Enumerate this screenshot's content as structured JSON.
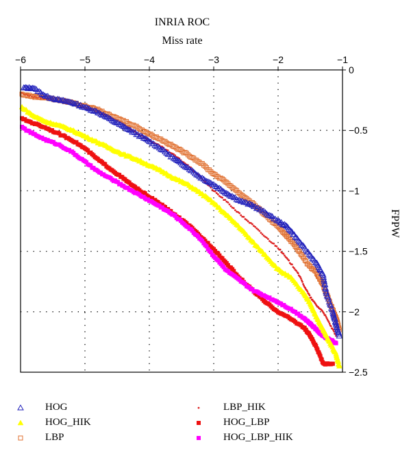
{
  "chart_data": {
    "type": "scatter",
    "title": "INRIA ROC",
    "xlabel": "Miss rate",
    "ylabel": "FPPW",
    "xlim": [
      -6,
      -1
    ],
    "ylim": [
      -2.5,
      0
    ],
    "xticks": [
      -6,
      -5,
      -4,
      -3,
      -2,
      -1
    ],
    "yticks": [
      0,
      -0.5,
      -1,
      -1.5,
      -2,
      -2.5
    ],
    "xtick_labels": [
      "−6",
      "−5",
      "−4",
      "−3",
      "−2",
      "−1"
    ],
    "ytick_labels": [
      "0",
      "−0.5",
      "−1",
      "−1.5",
      "−2",
      "−2.5"
    ],
    "grid": true,
    "legend_position": "below",
    "series": [
      {
        "name": "HOG",
        "color": "#2222bb",
        "marker": "triangle-open",
        "points": [
          [
            -5.95,
            -0.15
          ],
          [
            -5.8,
            -0.15
          ],
          [
            -5.6,
            -0.22
          ],
          [
            -5.4,
            -0.25
          ],
          [
            -5.2,
            -0.27
          ],
          [
            -5.0,
            -0.31
          ],
          [
            -4.8,
            -0.35
          ],
          [
            -4.6,
            -0.41
          ],
          [
            -4.4,
            -0.47
          ],
          [
            -4.2,
            -0.53
          ],
          [
            -4.0,
            -0.59
          ],
          [
            -3.8,
            -0.66
          ],
          [
            -3.6,
            -0.74
          ],
          [
            -3.4,
            -0.81
          ],
          [
            -3.2,
            -0.89
          ],
          [
            -3.0,
            -0.95
          ],
          [
            -2.8,
            -1.02
          ],
          [
            -2.6,
            -1.08
          ],
          [
            -2.4,
            -1.12
          ],
          [
            -2.2,
            -1.18
          ],
          [
            -2.0,
            -1.25
          ],
          [
            -1.85,
            -1.3
          ],
          [
            -1.7,
            -1.4
          ],
          [
            -1.55,
            -1.5
          ],
          [
            -1.4,
            -1.6
          ],
          [
            -1.3,
            -1.7
          ],
          [
            -1.25,
            -1.85
          ],
          [
            -1.15,
            -2.0
          ],
          [
            -1.1,
            -2.1
          ],
          [
            -1.05,
            -2.2
          ]
        ]
      },
      {
        "name": "HOG_HIK",
        "color": "#ffff00",
        "marker": "triangle-filled",
        "points": [
          [
            -6.0,
            -0.3
          ],
          [
            -5.8,
            -0.38
          ],
          [
            -5.6,
            -0.43
          ],
          [
            -5.4,
            -0.46
          ],
          [
            -5.2,
            -0.5
          ],
          [
            -5.0,
            -0.55
          ],
          [
            -4.8,
            -0.6
          ],
          [
            -4.6,
            -0.65
          ],
          [
            -4.4,
            -0.7
          ],
          [
            -4.2,
            -0.74
          ],
          [
            -4.0,
            -0.79
          ],
          [
            -3.8,
            -0.84
          ],
          [
            -3.6,
            -0.9
          ],
          [
            -3.4,
            -0.95
          ],
          [
            -3.2,
            -1.02
          ],
          [
            -3.0,
            -1.1
          ],
          [
            -2.8,
            -1.2
          ],
          [
            -2.6,
            -1.3
          ],
          [
            -2.4,
            -1.42
          ],
          [
            -2.2,
            -1.53
          ],
          [
            -2.0,
            -1.65
          ],
          [
            -1.8,
            -1.72
          ],
          [
            -1.6,
            -1.85
          ],
          [
            -1.5,
            -1.93
          ],
          [
            -1.4,
            -2.05
          ],
          [
            -1.3,
            -2.15
          ],
          [
            -1.2,
            -2.25
          ],
          [
            -1.1,
            -2.35
          ],
          [
            -1.05,
            -2.45
          ]
        ]
      },
      {
        "name": "LBP",
        "color": "#e07030",
        "marker": "square-open",
        "points": [
          [
            -6.0,
            -0.2
          ],
          [
            -5.8,
            -0.22
          ],
          [
            -5.6,
            -0.23
          ],
          [
            -5.4,
            -0.25
          ],
          [
            -5.2,
            -0.27
          ],
          [
            -5.0,
            -0.3
          ],
          [
            -4.8,
            -0.33
          ],
          [
            -4.6,
            -0.38
          ],
          [
            -4.4,
            -0.42
          ],
          [
            -4.2,
            -0.47
          ],
          [
            -4.0,
            -0.53
          ],
          [
            -3.8,
            -0.58
          ],
          [
            -3.6,
            -0.64
          ],
          [
            -3.4,
            -0.7
          ],
          [
            -3.2,
            -0.77
          ],
          [
            -3.0,
            -0.86
          ],
          [
            -2.8,
            -0.93
          ],
          [
            -2.6,
            -1.02
          ],
          [
            -2.4,
            -1.1
          ],
          [
            -2.2,
            -1.2
          ],
          [
            -2.0,
            -1.3
          ],
          [
            -1.85,
            -1.38
          ],
          [
            -1.7,
            -1.48
          ],
          [
            -1.55,
            -1.6
          ],
          [
            -1.4,
            -1.68
          ],
          [
            -1.3,
            -1.78
          ],
          [
            -1.2,
            -1.92
          ],
          [
            -1.1,
            -2.05
          ],
          [
            -1.05,
            -2.15
          ]
        ]
      },
      {
        "name": "LBP_HIK",
        "color": "#dd2222",
        "marker": "dot",
        "points": [
          [
            -6.0,
            -0.19
          ],
          [
            -5.8,
            -0.22
          ],
          [
            -5.6,
            -0.24
          ],
          [
            -5.4,
            -0.26
          ],
          [
            -5.2,
            -0.28
          ],
          [
            -5.0,
            -0.31
          ],
          [
            -4.8,
            -0.34
          ],
          [
            -4.6,
            -0.39
          ],
          [
            -4.4,
            -0.45
          ],
          [
            -4.2,
            -0.52
          ],
          [
            -4.0,
            -0.58
          ],
          [
            -3.8,
            -0.64
          ],
          [
            -3.6,
            -0.71
          ],
          [
            -3.4,
            -0.79
          ],
          [
            -3.2,
            -0.89
          ],
          [
            -3.0,
            -1.0
          ],
          [
            -2.8,
            -1.09
          ],
          [
            -2.6,
            -1.19
          ],
          [
            -2.4,
            -1.28
          ],
          [
            -2.2,
            -1.38
          ],
          [
            -2.0,
            -1.47
          ],
          [
            -1.85,
            -1.57
          ],
          [
            -1.7,
            -1.67
          ],
          [
            -1.6,
            -1.78
          ],
          [
            -1.5,
            -1.88
          ],
          [
            -1.4,
            -1.95
          ],
          [
            -1.3,
            -2.0
          ],
          [
            -1.2,
            -2.1
          ],
          [
            -1.1,
            -2.2
          ]
        ]
      },
      {
        "name": "HOG_LBP",
        "color": "#ee1111",
        "marker": "square-filled",
        "points": [
          [
            -6.0,
            -0.4
          ],
          [
            -5.8,
            -0.44
          ],
          [
            -5.6,
            -0.48
          ],
          [
            -5.4,
            -0.53
          ],
          [
            -5.2,
            -0.58
          ],
          [
            -5.0,
            -0.65
          ],
          [
            -4.8,
            -0.74
          ],
          [
            -4.6,
            -0.82
          ],
          [
            -4.4,
            -0.9
          ],
          [
            -4.2,
            -0.98
          ],
          [
            -4.0,
            -1.05
          ],
          [
            -3.8,
            -1.12
          ],
          [
            -3.6,
            -1.2
          ],
          [
            -3.4,
            -1.28
          ],
          [
            -3.2,
            -1.38
          ],
          [
            -3.0,
            -1.48
          ],
          [
            -2.8,
            -1.6
          ],
          [
            -2.6,
            -1.72
          ],
          [
            -2.4,
            -1.82
          ],
          [
            -2.2,
            -1.92
          ],
          [
            -2.0,
            -2.0
          ],
          [
            -1.8,
            -2.06
          ],
          [
            -1.6,
            -2.13
          ],
          [
            -1.5,
            -2.2
          ],
          [
            -1.4,
            -2.3
          ],
          [
            -1.3,
            -2.43
          ],
          [
            -1.15,
            -2.43
          ]
        ]
      },
      {
        "name": "HOG_LBP_HIK",
        "color": "#ff00ff",
        "marker": "square-filled",
        "points": [
          [
            -6.0,
            -0.47
          ],
          [
            -5.8,
            -0.53
          ],
          [
            -5.6,
            -0.58
          ],
          [
            -5.4,
            -0.62
          ],
          [
            -5.2,
            -0.68
          ],
          [
            -5.0,
            -0.76
          ],
          [
            -4.8,
            -0.84
          ],
          [
            -4.6,
            -0.9
          ],
          [
            -4.4,
            -0.96
          ],
          [
            -4.2,
            -1.02
          ],
          [
            -4.0,
            -1.08
          ],
          [
            -3.8,
            -1.14
          ],
          [
            -3.6,
            -1.21
          ],
          [
            -3.4,
            -1.3
          ],
          [
            -3.2,
            -1.4
          ],
          [
            -3.0,
            -1.54
          ],
          [
            -2.8,
            -1.66
          ],
          [
            -2.6,
            -1.74
          ],
          [
            -2.4,
            -1.82
          ],
          [
            -2.2,
            -1.87
          ],
          [
            -2.0,
            -1.92
          ],
          [
            -1.8,
            -1.98
          ],
          [
            -1.6,
            -2.05
          ],
          [
            -1.5,
            -2.1
          ],
          [
            -1.4,
            -2.15
          ],
          [
            -1.3,
            -2.2
          ],
          [
            -1.2,
            -2.23
          ],
          [
            -1.1,
            -2.26
          ]
        ]
      }
    ]
  }
}
